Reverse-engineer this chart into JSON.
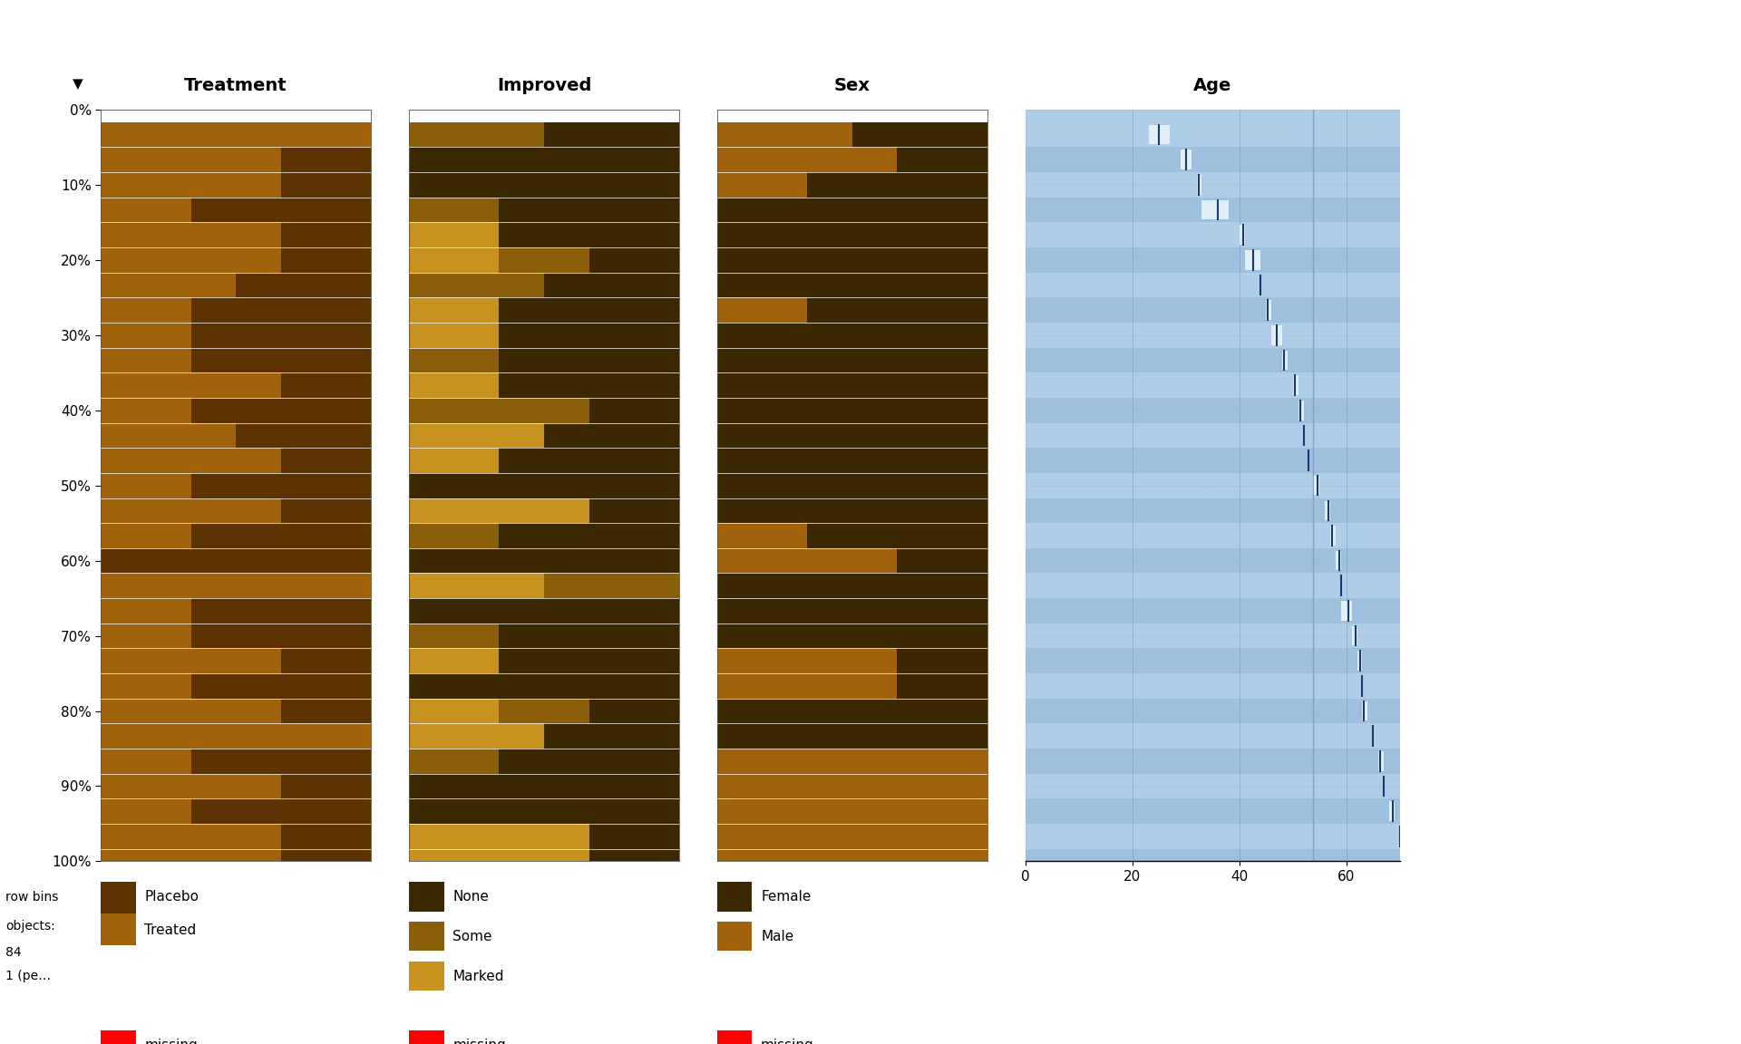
{
  "title_treatment": "Treatment",
  "title_improved": "Improved",
  "title_sex": "Sex",
  "title_age": "Age",
  "n_obs": 84,
  "n_bins": 30,
  "color_placebo": "#5C3300",
  "color_treated": "#A0620A",
  "color_none": "#3B2800",
  "color_some": "#8B5E0A",
  "color_marked": "#C8921E",
  "color_female": "#3B2800",
  "color_male": "#A0620A",
  "color_missing": "#FF0000",
  "color_age_bg_light": "#AECDE8",
  "color_age_bg_dark": "#9DC0DE",
  "color_age_bar": "#E2EFF8",
  "color_age_tick": "#1A3A6B",
  "color_age_vline": "#7799BB",
  "ylabel_ticks": [
    "0%",
    "10%",
    "20%",
    "30%",
    "40%",
    "50%",
    "60%",
    "70%",
    "80%",
    "90%",
    "100%"
  ],
  "age_xlim": [
    0,
    70
  ],
  "age_xticks": [
    0,
    20,
    40,
    60
  ],
  "background_color": "#FFFFFF"
}
